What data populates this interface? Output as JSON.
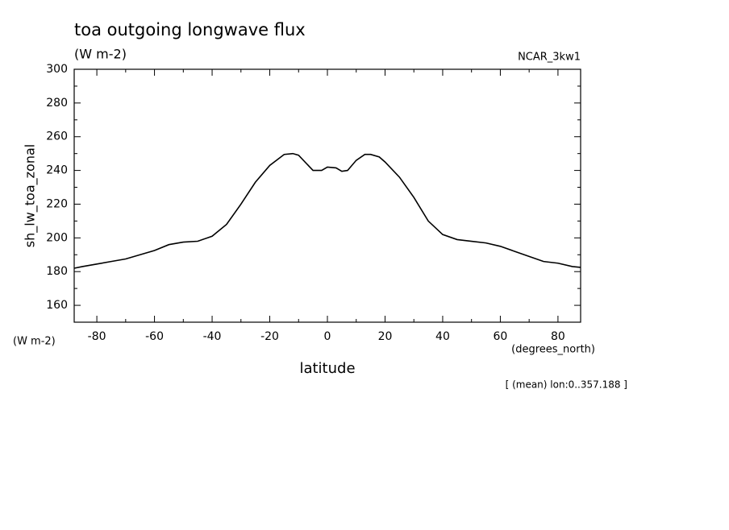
{
  "chart_data": {
    "type": "line",
    "title": "toa outgoing longwave flux",
    "subtitle": "(W m-2)",
    "dataset": "NCAR_3kw1",
    "y_label": "sh_lw_toa_zonal",
    "y_units": "(W m-2)",
    "x_units": "(degrees_north)",
    "x_label": "latitude",
    "annotation": "[ (mean) lon:0..357.188 ]",
    "x": [
      -87.86,
      -85,
      -80,
      -75,
      -70,
      -65,
      -60,
      -55,
      -50,
      -45,
      -40,
      -35,
      -30,
      -25,
      -20,
      -15,
      -12,
      -10,
      -5,
      -2,
      0,
      3,
      5,
      7,
      10,
      13,
      15,
      18,
      20,
      25,
      30,
      35,
      40,
      45,
      50,
      55,
      60,
      65,
      70,
      75,
      80,
      85,
      87.86
    ],
    "series": [
      {
        "name": "sh_lw_toa_zonal",
        "color": "#000000",
        "values": [
          182,
          183,
          184.5,
          186,
          187.5,
          190,
          192.5,
          196,
          197.5,
          198,
          201,
          208,
          220,
          233,
          243,
          249.5,
          250,
          249,
          240,
          240,
          242,
          241.5,
          239.5,
          240,
          246,
          249.5,
          249.5,
          248,
          245,
          236,
          224,
          210,
          202,
          199,
          198,
          197,
          195,
          192,
          189,
          186,
          185,
          183,
          182.5
        ]
      }
    ],
    "xlim": [
      -87.86,
      87.86
    ],
    "ylim": [
      150,
      300
    ],
    "xticks": [
      -80,
      -60,
      -40,
      -20,
      0,
      20,
      40,
      60,
      80
    ],
    "yticks": [
      160,
      180,
      200,
      220,
      240,
      260,
      280,
      300
    ]
  }
}
